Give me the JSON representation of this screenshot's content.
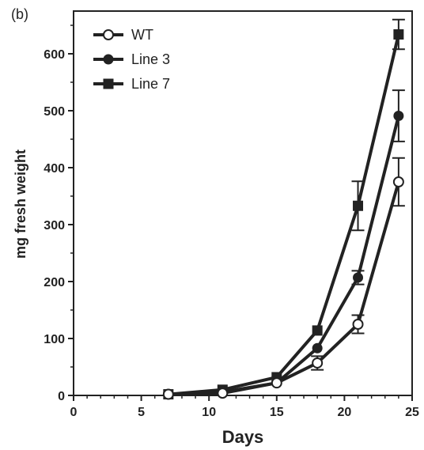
{
  "chart_data": {
    "type": "line",
    "panel_label": "(b)",
    "xlabel": "Days",
    "ylabel": "mg fresh weight",
    "xlim": [
      0,
      25
    ],
    "ylim": [
      0,
      675
    ],
    "x_ticks": [
      0,
      5,
      10,
      15,
      20,
      25
    ],
    "y_ticks": [
      0,
      100,
      200,
      300,
      400,
      500,
      600
    ],
    "grid": false,
    "legend_position": "top-left",
    "series": [
      {
        "name": "WT",
        "marker": "open-circle",
        "x": [
          7,
          11,
          15,
          18,
          21,
          24
        ],
        "y": [
          2,
          4,
          22,
          57,
          125,
          375
        ],
        "err": [
          0,
          0,
          0,
          12,
          16,
          42
        ]
      },
      {
        "name": "Line 3",
        "marker": "filled-circle",
        "x": [
          7,
          11,
          15,
          18,
          21,
          24
        ],
        "y": [
          2,
          6,
          22,
          83,
          207,
          491
        ],
        "err": [
          0,
          0,
          0,
          0,
          12,
          45
        ]
      },
      {
        "name": "Line 7",
        "marker": "filled-square",
        "x": [
          7,
          11,
          15,
          18,
          21,
          24
        ],
        "y": [
          2,
          10,
          32,
          114,
          333,
          634
        ],
        "err": [
          0,
          0,
          0,
          0,
          43,
          26
        ]
      }
    ],
    "colors": {
      "line": "#222222",
      "marker_fill": "#222222",
      "open_fill": "#ffffff"
    }
  }
}
